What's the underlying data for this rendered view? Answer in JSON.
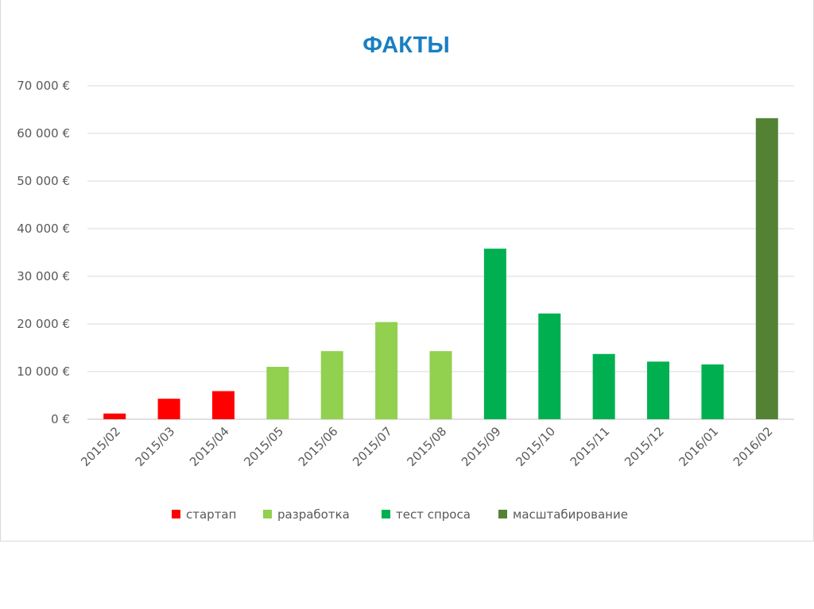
{
  "chart_data": {
    "type": "bar",
    "title": "ФАКТЫ",
    "title_color": "#1a7fc1",
    "xlabel": "",
    "ylabel": "",
    "ylim": [
      0,
      70000
    ],
    "y_ticks": [
      0,
      10000,
      20000,
      30000,
      40000,
      50000,
      60000,
      70000
    ],
    "y_tick_labels": [
      "0 €",
      "10 000 €",
      "20 000 €",
      "30 000 €",
      "40 000 €",
      "50 000 €",
      "60 000 €",
      "70 000 €"
    ],
    "grid": true,
    "legend_position": "bottom",
    "categories": [
      "2015/02",
      "2015/03",
      "2015/04",
      "2015/05",
      "2015/06",
      "2015/07",
      "2015/08",
      "2015/09",
      "2015/10",
      "2015/11",
      "2015/12",
      "2016/01",
      "2016/02"
    ],
    "values": [
      1200,
      4300,
      5900,
      11000,
      14300,
      20400,
      14300,
      35800,
      22200,
      13700,
      12100,
      11500,
      63200
    ],
    "phase_of_bar": [
      0,
      0,
      0,
      1,
      1,
      1,
      1,
      2,
      2,
      2,
      2,
      2,
      3
    ],
    "phases": [
      {
        "name": "стартап",
        "color": "#ff0000"
      },
      {
        "name": "разработка",
        "color": "#92d050"
      },
      {
        "name": "тест спроса",
        "color": "#00b050"
      },
      {
        "name": "масштабирование",
        "color": "#548235"
      }
    ]
  }
}
